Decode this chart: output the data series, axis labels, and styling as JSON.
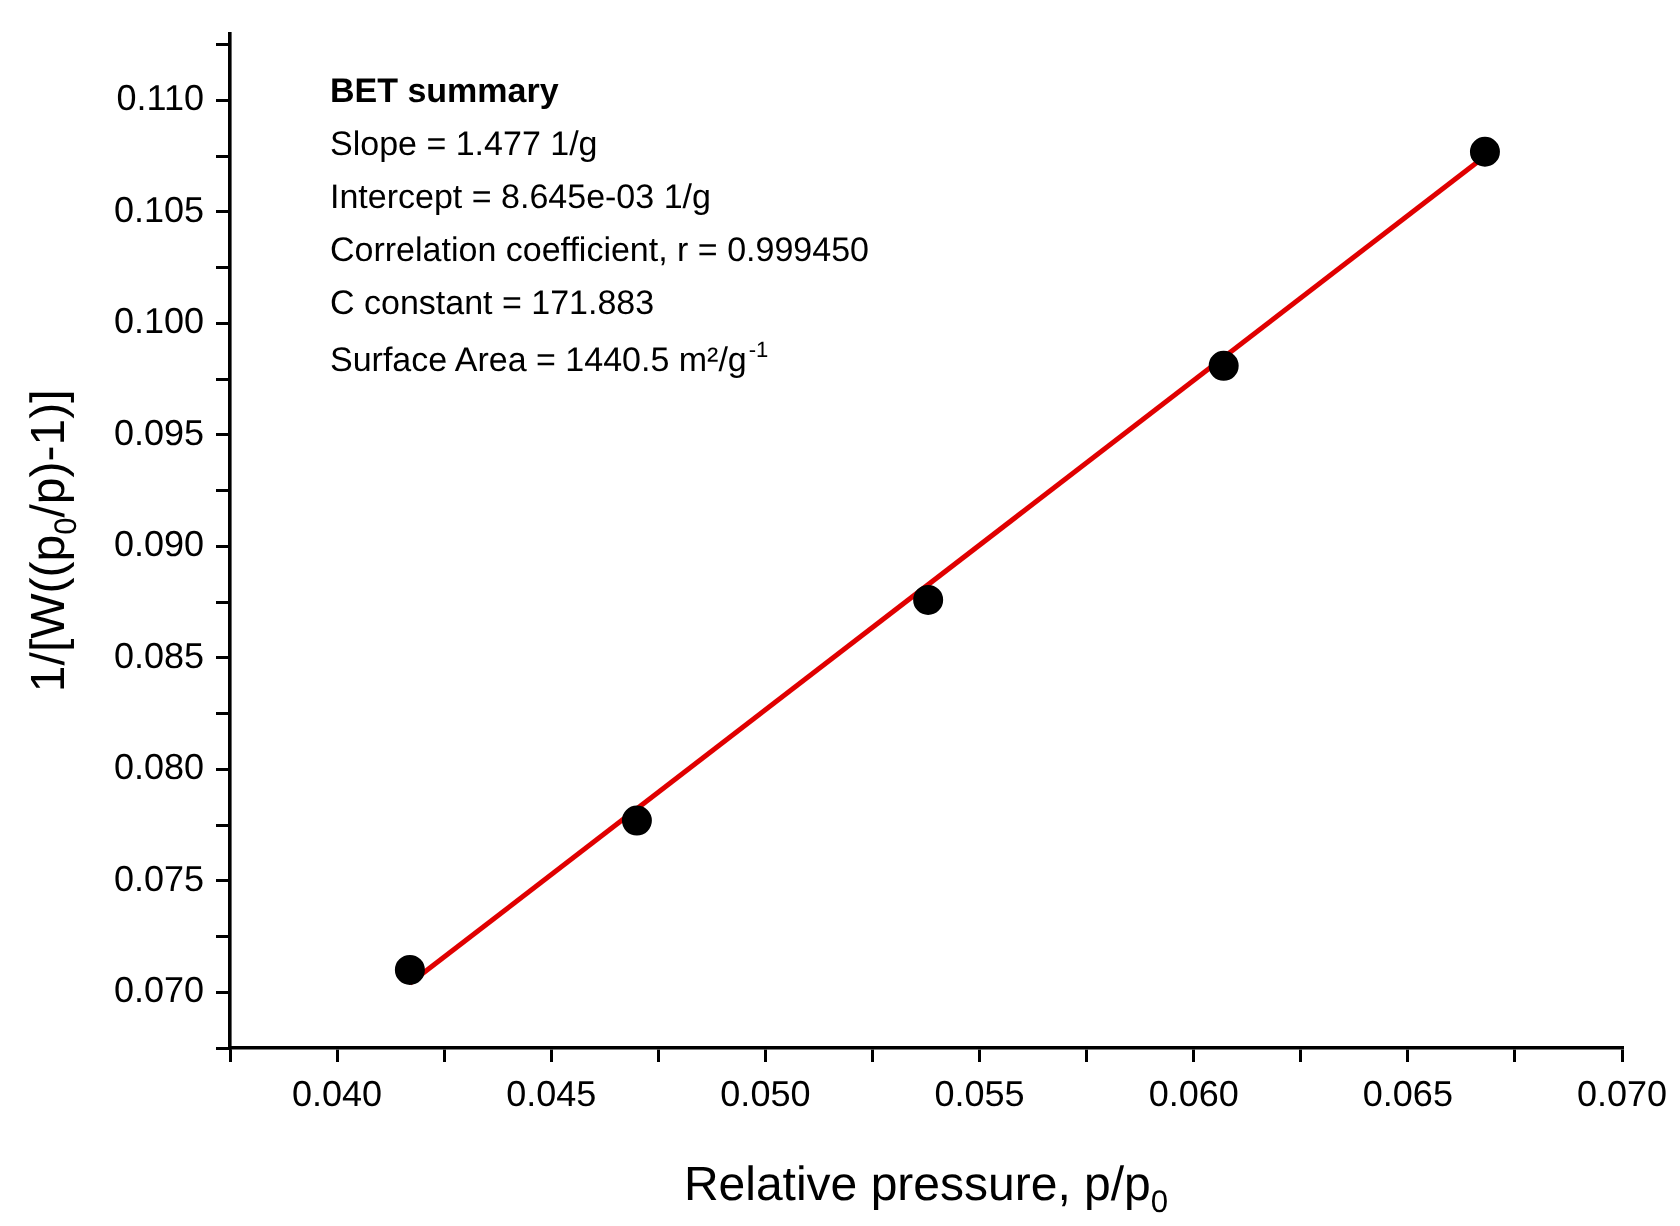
{
  "chart_data": {
    "type": "scatter",
    "xlabel": "Relative pressure, p/p$_{0}$",
    "ylabel": "1/[W((p$_{0}$/p)-1)]",
    "annotations": [
      "BET summary",
      "Slope = 1.477 1/g",
      "Intercept = 8.645e-03 1/g",
      "Correlation coefficient, r = 0.999450",
      "C constant = 171.883",
      "Surface Area = 1440.5 m²/g$^{-1}$"
    ],
    "xlim": [
      0.0375,
      0.07
    ],
    "xticks": [
      {
        "value": 0.0375,
        "label": null
      },
      {
        "value": 0.04,
        "label": "0.040"
      },
      {
        "value": 0.0425,
        "label": null
      },
      0.045,
      {
        "value": 0.0475,
        "label": null
      },
      {
        "value": 0.05,
        "label": "0.050"
      },
      {
        "value": 0.0525,
        "label": null
      },
      0.055,
      {
        "value": 0.0575,
        "label": null
      },
      {
        "value": 0.06,
        "label": "0.060"
      },
      {
        "value": 0.0625,
        "label": null
      },
      0.065,
      {
        "value": 0.0675,
        "label": null
      },
      {
        "value": 0.07,
        "label": "0.070"
      }
    ],
    "ylim": [
      0.0675,
      0.113
    ],
    "yticks": [
      {
        "value": 0.0675,
        "label": null
      },
      {
        "value": 0.07,
        "label": "0.070"
      },
      {
        "value": 0.0725,
        "label": null
      },
      0.075,
      {
        "value": 0.0775,
        "label": null
      },
      {
        "value": 0.08,
        "label": "0.080"
      },
      {
        "value": 0.0825,
        "label": null
      },
      0.085,
      {
        "value": 0.0875,
        "label": null
      },
      {
        "value": 0.09,
        "label": "0.090"
      },
      {
        "value": 0.0925,
        "label": null
      },
      0.095,
      {
        "value": 0.0975,
        "label": null
      },
      {
        "value": 0.1,
        "label": "0.100"
      },
      {
        "value": 0.1025,
        "label": null
      },
      0.105,
      {
        "value": 0.1075,
        "label": null
      },
      {
        "value": 0.11,
        "label": "0.110"
      },
      {
        "value": 0.1125,
        "label": null
      }
    ],
    "grid": false,
    "series": [
      {
        "marker": "circle",
        "color": "#000000",
        "x": [
          0.0417,
          0.047,
          0.0538,
          0.0607,
          0.0668
        ],
        "values": [
          0.071,
          0.0777,
          0.0876,
          0.0981,
          0.1077
        ]
      },
      {
        "type": "line",
        "line_style": "solid",
        "color": "#e00000",
        "x": [
          0.0417,
          0.0668
        ],
        "values": [
          0.0704,
          0.1075
        ]
      }
    ]
  }
}
